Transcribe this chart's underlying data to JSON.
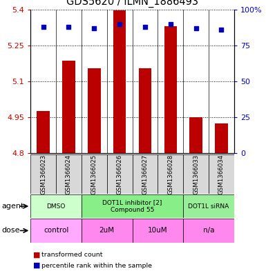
{
  "title": "GDS5620 / ILMN_1886493",
  "samples": [
    "GSM1366023",
    "GSM1366024",
    "GSM1366025",
    "GSM1366026",
    "GSM1366027",
    "GSM1366028",
    "GSM1366033",
    "GSM1366034"
  ],
  "bar_values": [
    4.975,
    5.185,
    5.155,
    5.395,
    5.155,
    5.33,
    4.95,
    4.925
  ],
  "percentile_values": [
    88,
    88,
    87,
    90,
    88,
    90,
    87,
    86
  ],
  "ylim_left": [
    4.8,
    5.4
  ],
  "yticks_left": [
    4.8,
    4.95,
    5.1,
    5.25,
    5.4
  ],
  "ytick_labels_left": [
    "4.8",
    "4.95",
    "5.1",
    "5.25",
    "5.4"
  ],
  "yticks_right": [
    0,
    25,
    50,
    75,
    100
  ],
  "ytick_labels_right": [
    "0",
    "25",
    "50",
    "75",
    "100%"
  ],
  "bar_color": "#bb0000",
  "dot_color": "#0000bb",
  "bar_width": 0.5,
  "agent_groups": [
    {
      "label": "DMSO",
      "span": [
        0,
        2
      ],
      "color": "#ccffcc"
    },
    {
      "label": "DOT1L inhibitor [2]\nCompound 55",
      "span": [
        2,
        6
      ],
      "color": "#88ee88"
    },
    {
      "label": "DOT1L siRNA",
      "span": [
        6,
        8
      ],
      "color": "#99ee99"
    }
  ],
  "dose_groups": [
    {
      "label": "control",
      "span": [
        0,
        2
      ],
      "color": "#ffaaff"
    },
    {
      "label": "2uM",
      "span": [
        2,
        4
      ],
      "color": "#ff88ee"
    },
    {
      "label": "10uM",
      "span": [
        4,
        6
      ],
      "color": "#ff88ee"
    },
    {
      "label": "n/a",
      "span": [
        6,
        8
      ],
      "color": "#ff88ee"
    }
  ],
  "legend_items": [
    {
      "label": "transformed count",
      "color": "#bb0000"
    },
    {
      "label": "percentile rank within the sample",
      "color": "#0000bb"
    }
  ],
  "bg_color": "#d8d8d8",
  "left_tick_color": "#cc0000",
  "right_tick_color": "#0000cc",
  "grid_linestyle": ":",
  "grid_color": "black",
  "grid_linewidth": 0.7
}
